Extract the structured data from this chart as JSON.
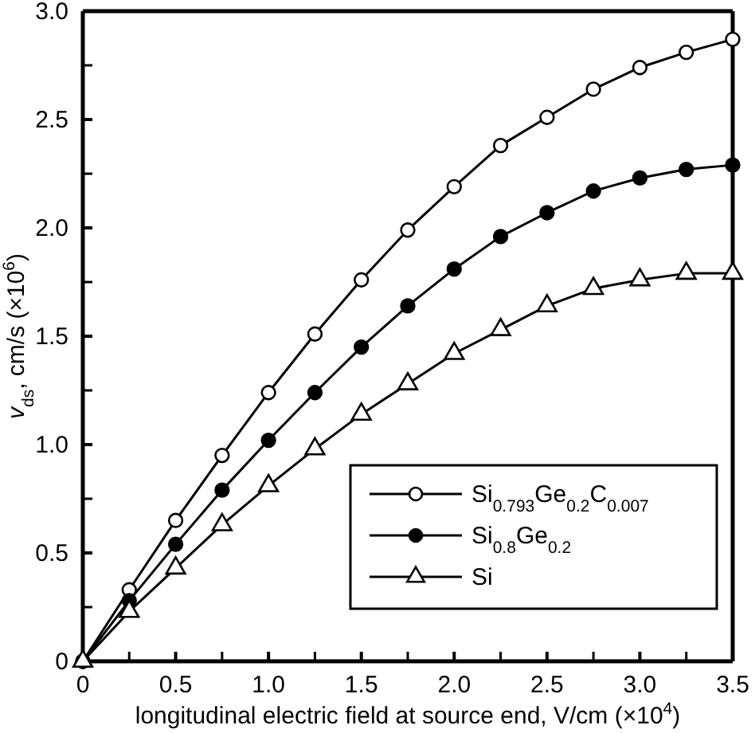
{
  "chart_data": {
    "type": "line",
    "xlabel": "longitudinal electric field at source end, V/cm (×10$^{4}$)",
    "ylabel": "v$_{ds}$, cm/s (×10$^{6}$)",
    "x": [
      0,
      0.25,
      0.5,
      0.75,
      1,
      1.25,
      1.5,
      1.75,
      2,
      2.25,
      2.5,
      2.75,
      3,
      3.25,
      3.5
    ],
    "series": [
      {
        "name": "Si$_{0.793}$Ge$_{0.2}$C$_{0.007}$",
        "color": "#000000",
        "marker": "circle",
        "values": [
          0,
          0.33,
          0.65,
          0.95,
          1.24,
          1.51,
          1.76,
          1.99,
          2.19,
          2.38,
          2.51,
          2.64,
          2.74,
          2.81,
          2.87
        ]
      },
      {
        "name": "Si$_{0.8}$Ge$_{0.2}$",
        "color": "#000000",
        "marker": "circle",
        "values": [
          0,
          0.28,
          0.54,
          0.79,
          1.02,
          1.24,
          1.45,
          1.64,
          1.81,
          1.96,
          2.07,
          2.17,
          2.23,
          2.27,
          2.29
        ]
      },
      {
        "name": "Si",
        "color": "#000000",
        "marker": "triangle",
        "values": [
          0,
          0.23,
          0.43,
          0.63,
          0.81,
          0.98,
          1.14,
          1.28,
          1.42,
          1.53,
          1.64,
          1.72,
          1.76,
          1.79,
          1.79
        ]
      }
    ],
    "xlim": [
      0,
      3.5
    ],
    "ylim": [
      0,
      3
    ],
    "xticks": [
      0,
      {
        "value": 0.25,
        "label": null
      },
      0.5,
      {
        "value": 0.75,
        "label": null
      },
      {
        "value": 1,
        "label": "1.0"
      },
      {
        "value": 1.25,
        "label": null
      },
      1.5,
      {
        "value": 1.75,
        "label": null
      },
      {
        "value": 2,
        "label": "2.0"
      },
      {
        "value": 2.25,
        "label": null
      },
      2.5,
      {
        "value": 2.75,
        "label": null
      },
      {
        "value": 3,
        "label": "3.0"
      },
      {
        "value": 3.25,
        "label": null
      },
      3.5
    ],
    "yticks": [
      0,
      {
        "value": 0.25,
        "label": null
      },
      0.5,
      {
        "value": 0.75,
        "label": null
      },
      {
        "value": 1,
        "label": "1.0"
      },
      {
        "value": 1.25,
        "label": null
      },
      1.5,
      {
        "value": 1.75,
        "label": null
      },
      {
        "value": 2,
        "label": "2.0"
      },
      {
        "value": 2.25,
        "label": null
      },
      2.5,
      {
        "value": 2.75,
        "label": null
      },
      {
        "value": 3,
        "label": "3.0"
      }
    ],
    "grid": false,
    "legend": "bottom right",
    "line_style": "solid"
  }
}
